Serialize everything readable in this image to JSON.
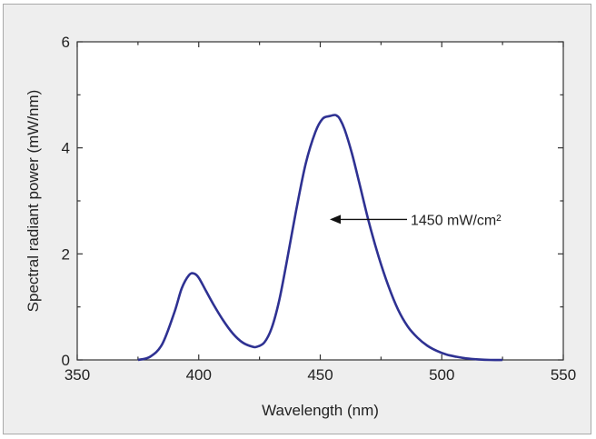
{
  "chart_data": {
    "type": "line",
    "title": "",
    "xlabel": "Wavelength (nm)",
    "ylabel": "Spectral radiant power (mW/nm)",
    "xlim": [
      350,
      550
    ],
    "ylim": [
      0,
      6
    ],
    "x_ticks": [
      350,
      400,
      450,
      500,
      550
    ],
    "y_ticks": [
      0,
      2,
      4,
      6
    ],
    "grid": false,
    "series": [
      {
        "color": "#2e3192",
        "x": [
          375,
          380,
          385,
          390,
          393,
          396,
          398,
          400,
          403,
          406,
          410,
          414,
          418,
          422,
          424,
          427,
          430,
          433,
          436,
          440,
          444,
          448,
          451,
          454,
          456,
          457,
          458,
          460,
          463,
          466,
          470,
          474,
          478,
          482,
          486,
          490,
          494,
          498,
          502,
          506,
          510,
          515,
          520,
          525
        ],
        "y": [
          0.0,
          0.06,
          0.3,
          0.9,
          1.35,
          1.6,
          1.63,
          1.55,
          1.3,
          1.05,
          0.75,
          0.5,
          0.33,
          0.25,
          0.25,
          0.33,
          0.6,
          1.1,
          1.8,
          2.8,
          3.7,
          4.3,
          4.55,
          4.6,
          4.62,
          4.6,
          4.55,
          4.35,
          3.9,
          3.35,
          2.6,
          1.95,
          1.4,
          0.95,
          0.63,
          0.42,
          0.27,
          0.17,
          0.1,
          0.06,
          0.03,
          0.01,
          0.0,
          0.0
        ]
      }
    ],
    "annotations": [
      {
        "text": "1450 mW/cm²",
        "arrow_from_x": 462,
        "arrow_to_x": 457,
        "y": 2.65
      }
    ]
  }
}
